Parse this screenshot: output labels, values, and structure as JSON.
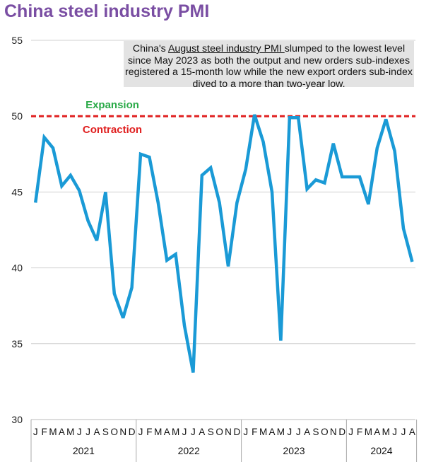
{
  "title": "China steel industry PMI",
  "annotation": {
    "prefix": "China's ",
    "underlined": "August steel industry PMI ",
    "rest": "slumped to the lowest level since May 2023 as both the output and new orders sub-indexes registered a 15-month low while the new export orders sub-index dived to a more than two-year low."
  },
  "chart_data": {
    "type": "line",
    "title": "China steel industry PMI",
    "ylim": [
      30,
      55
    ],
    "yticks": [
      30,
      35,
      40,
      45,
      50,
      55
    ],
    "grid": true,
    "reference_line": {
      "value": 50,
      "style": "dashed",
      "color": "#e02020",
      "label_above": "Expansion",
      "label_below": "Contraction",
      "above_color": "#2aaa48",
      "below_color": "#e02020"
    },
    "series_color": "#1a9ad6",
    "years": [
      "2021",
      "2022",
      "2023",
      "2024"
    ],
    "month_labels": [
      "J",
      "F",
      "M",
      "A",
      "M",
      "J",
      "J",
      "A",
      "S",
      "O",
      "N",
      "D",
      "J",
      "F",
      "M",
      "A",
      "M",
      "J",
      "J",
      "A",
      "S",
      "O",
      "N",
      "D",
      "J",
      "F",
      "M",
      "A",
      "M",
      "J",
      "J",
      "A",
      "S",
      "O",
      "N",
      "D",
      "J",
      "F",
      "M",
      "A",
      "M",
      "J",
      "J",
      "A"
    ],
    "x": [
      "2021-01",
      "2021-02",
      "2021-03",
      "2021-04",
      "2021-05",
      "2021-06",
      "2021-07",
      "2021-08",
      "2021-09",
      "2021-10",
      "2021-11",
      "2021-12",
      "2022-01",
      "2022-02",
      "2022-03",
      "2022-04",
      "2022-05",
      "2022-06",
      "2022-07",
      "2022-08",
      "2022-09",
      "2022-10",
      "2022-11",
      "2022-12",
      "2023-01",
      "2023-02",
      "2023-03",
      "2023-04",
      "2023-05",
      "2023-06",
      "2023-07",
      "2023-08",
      "2023-09",
      "2023-10",
      "2023-11",
      "2023-12",
      "2024-01",
      "2024-02",
      "2024-03",
      "2024-04",
      "2024-05",
      "2024-06",
      "2024-07",
      "2024-08"
    ],
    "values": [
      44.3,
      48.6,
      47.9,
      45.4,
      46.1,
      45.1,
      43.1,
      41.8,
      45.0,
      38.3,
      36.7,
      38.7,
      47.5,
      47.3,
      44.3,
      40.5,
      40.9,
      36.2,
      33.1,
      46.1,
      46.6,
      44.3,
      40.1,
      44.3,
      46.5,
      50.1,
      48.3,
      45.0,
      35.2,
      49.9,
      49.9,
      45.2,
      45.8,
      45.6,
      48.2,
      46.0,
      46.0,
      46.0,
      44.2,
      47.9,
      49.8,
      47.7,
      42.6,
      40.4
    ]
  }
}
